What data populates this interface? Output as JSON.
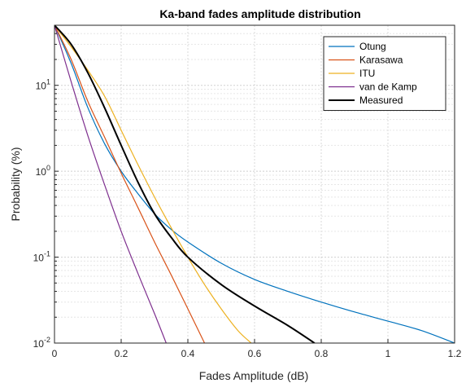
{
  "chart_data": {
    "type": "line",
    "title": "Ka-band fades amplitude distribution",
    "xlabel": "Fades Amplitude (dB)",
    "ylabel": "Probability (%)",
    "xscale": "linear",
    "yscale": "log",
    "xlim": [
      0,
      1.2
    ],
    "ylim": [
      0.01,
      50
    ],
    "x_ticks": [
      "0",
      "0.2",
      "0.4",
      "0.6",
      "0.8",
      "1",
      "1.2"
    ],
    "y_ticks": [
      {
        "value": 10,
        "base": "10",
        "exp": "1"
      },
      {
        "value": 1,
        "base": "10",
        "exp": "0"
      },
      {
        "value": 0.1,
        "base": "10",
        "exp": "-1"
      },
      {
        "value": 0.01,
        "base": "10",
        "exp": "-2"
      }
    ],
    "grid": true,
    "legend_position": "top-right",
    "series": [
      {
        "name": "Otung",
        "color": "#0072BD",
        "x": [
          0,
          0.05,
          0.1,
          0.15,
          0.2,
          0.25,
          0.3,
          0.35,
          0.4,
          0.5,
          0.6,
          0.7,
          0.8,
          0.9,
          1.0,
          1.1,
          1.2
        ],
        "y": [
          50,
          18,
          5.5,
          2.1,
          1.0,
          0.55,
          0.32,
          0.21,
          0.15,
          0.085,
          0.055,
          0.04,
          0.03,
          0.023,
          0.018,
          0.014,
          0.01
        ]
      },
      {
        "name": "Karasawa",
        "color": "#D95319",
        "x": [
          0,
          0.05,
          0.1,
          0.15,
          0.2,
          0.25,
          0.3,
          0.35,
          0.4,
          0.45
        ],
        "y": [
          50,
          20,
          6.5,
          2.5,
          0.95,
          0.38,
          0.15,
          0.062,
          0.025,
          0.01
        ]
      },
      {
        "name": "ITU",
        "color": "#EDB120",
        "x": [
          0,
          0.05,
          0.1,
          0.15,
          0.2,
          0.25,
          0.3,
          0.35,
          0.4,
          0.45,
          0.5,
          0.55,
          0.59
        ],
        "y": [
          50,
          28,
          15,
          7.5,
          3.0,
          1.2,
          0.5,
          0.22,
          0.1,
          0.048,
          0.025,
          0.014,
          0.01
        ]
      },
      {
        "name": "van de Kamp",
        "color": "#7E2F8E",
        "x": [
          0,
          0.05,
          0.1,
          0.15,
          0.2,
          0.25,
          0.3,
          0.335
        ],
        "y": [
          50,
          11,
          2.6,
          0.7,
          0.2,
          0.065,
          0.022,
          0.01
        ]
      },
      {
        "name": "Measured",
        "color": "#000000",
        "x": [
          0,
          0.05,
          0.1,
          0.15,
          0.2,
          0.25,
          0.3,
          0.35,
          0.4,
          0.5,
          0.6,
          0.7,
          0.78
        ],
        "y": [
          50,
          30,
          14,
          5.5,
          2.0,
          0.75,
          0.32,
          0.17,
          0.1,
          0.048,
          0.027,
          0.016,
          0.01
        ]
      }
    ]
  }
}
